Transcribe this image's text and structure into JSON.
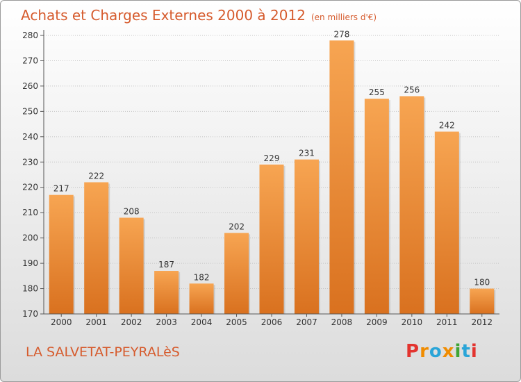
{
  "chart_title": "Achats et Charges Externes 2000 à 2012",
  "chart_subtitle": "(en milliers d'€)",
  "commune": "LA SALVETAT-PEYRALèS",
  "logo_text": "Proxiti",
  "colors": {
    "bar_top": "#f7a552",
    "bar_bottom": "#d9711f",
    "title": "#d65b2d",
    "logo_letters": [
      "#e3342f",
      "#f08c00",
      "#2aa5d8",
      "#f08c00",
      "#3fa535",
      "#2aa5d8",
      "#e3342f"
    ]
  },
  "chart_data": {
    "type": "bar",
    "title": "Achats et Charges Externes 2000 à 2012",
    "subtitle": "(en milliers d'€)",
    "categories": [
      "2000",
      "2001",
      "2002",
      "2003",
      "2004",
      "2005",
      "2006",
      "2007",
      "2008",
      "2009",
      "2010",
      "2011",
      "2012"
    ],
    "values": [
      217,
      222,
      208,
      187,
      182,
      202,
      229,
      231,
      278,
      255,
      256,
      242,
      180
    ],
    "ylim": [
      170,
      280
    ],
    "yticks": [
      170,
      180,
      190,
      200,
      210,
      220,
      230,
      240,
      250,
      260,
      270,
      280
    ],
    "grid": "horizontal",
    "xlabel": "",
    "ylabel": ""
  }
}
